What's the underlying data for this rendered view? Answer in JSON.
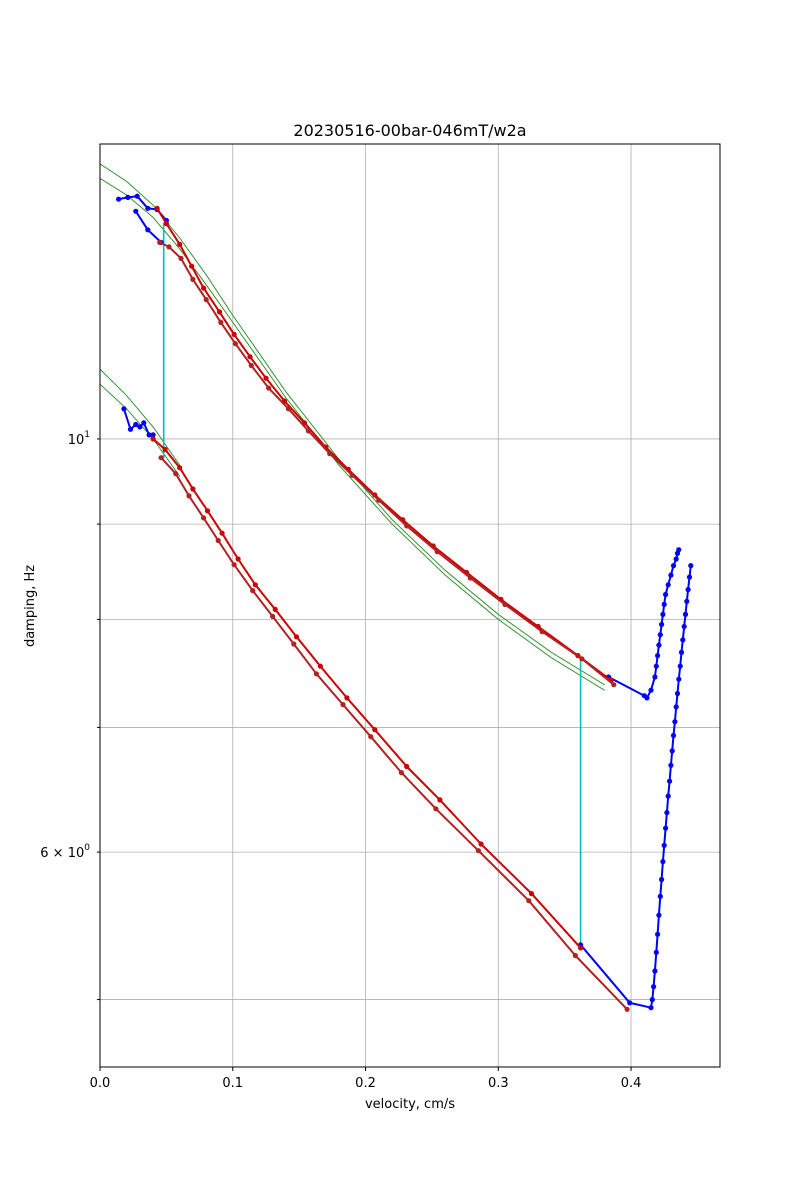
{
  "chart_data": {
    "type": "line",
    "title": "20230516-00bar-046mT/w2a",
    "xlabel": "velocity, cm/s",
    "ylabel": "damping, Hz",
    "xlim": [
      0.0,
      0.467
    ],
    "ylim": [
      4.6,
      14.4
    ],
    "yscale": "log",
    "grid": true,
    "x_ticks": [
      {
        "value": 0.0,
        "label": "0.0"
      },
      {
        "value": 0.1,
        "label": "0.1"
      },
      {
        "value": 0.2,
        "label": "0.2"
      },
      {
        "value": 0.3,
        "label": "0.3"
      },
      {
        "value": 0.4,
        "label": "0.4"
      }
    ],
    "y_major_ticks": [
      {
        "value": 10,
        "label_base": "10",
        "label_exp": "1"
      }
    ],
    "y_labeled_minor_ticks": [
      {
        "value": 6,
        "label_base": "6 × 10",
        "label_exp": "0"
      }
    ],
    "y_minor_grid": [
      5,
      7,
      8,
      9
    ],
    "colors": {
      "raw": "#0000ff",
      "processed_1": "#cc0000",
      "processed_2": "#b22222",
      "fit": "#228b22",
      "marker_line": "#00bfbf"
    },
    "series": [
      {
        "style": "raw",
        "color": "#0000ff",
        "markers": true,
        "x": [
          0.014,
          0.021,
          0.028,
          0.036,
          0.043,
          0.05
        ],
        "y": [
          13.45,
          13.48,
          13.5,
          13.3,
          13.28,
          13.1
        ]
      },
      {
        "style": "raw",
        "color": "#0000ff",
        "markers": true,
        "x": [
          0.027,
          0.036,
          0.046
        ],
        "y": [
          13.25,
          12.95,
          12.75
        ]
      },
      {
        "style": "processed",
        "color": "#cc0000",
        "markers": true,
        "x": [
          0.043,
          0.05,
          0.06,
          0.069,
          0.078,
          0.09,
          0.101,
          0.113,
          0.125,
          0.139,
          0.154,
          0.17,
          0.187,
          0.207,
          0.228,
          0.251,
          0.276,
          0.302,
          0.33,
          0.36,
          0.385
        ],
        "y": [
          13.3,
          13.05,
          12.72,
          12.38,
          12.05,
          11.7,
          11.38,
          11.07,
          10.78,
          10.48,
          10.2,
          9.9,
          9.63,
          9.33,
          9.05,
          8.76,
          8.48,
          8.2,
          7.93,
          7.65,
          7.42
        ]
      },
      {
        "style": "processed",
        "color": "#b22222",
        "markers": true,
        "x": [
          0.045,
          0.052,
          0.061,
          0.07,
          0.08,
          0.091,
          0.102,
          0.114,
          0.127,
          0.142,
          0.157,
          0.173,
          0.19,
          0.21,
          0.231,
          0.254,
          0.279,
          0.305,
          0.333,
          0.363,
          0.387
        ],
        "y": [
          12.75,
          12.68,
          12.5,
          12.18,
          11.88,
          11.55,
          11.25,
          10.95,
          10.65,
          10.38,
          10.1,
          9.82,
          9.56,
          9.27,
          8.98,
          8.7,
          8.42,
          8.15,
          7.88,
          7.62,
          7.38
        ]
      },
      {
        "style": "raw",
        "color": "#0000ff",
        "markers": true,
        "x": [
          0.383,
          0.41,
          0.412,
          0.415,
          0.418,
          0.419,
          0.42,
          0.421,
          0.422,
          0.423,
          0.424,
          0.425,
          0.426,
          0.428,
          0.43,
          0.432,
          0.434,
          0.435,
          0.436
        ],
        "y": [
          7.45,
          7.28,
          7.26,
          7.33,
          7.45,
          7.55,
          7.65,
          7.75,
          7.85,
          7.95,
          8.05,
          8.15,
          8.25,
          8.35,
          8.45,
          8.55,
          8.62,
          8.68,
          8.72
        ]
      },
      {
        "style": "raw",
        "color": "#0000ff",
        "markers": true,
        "x": [
          0.018,
          0.023,
          0.027,
          0.03,
          0.033,
          0.037,
          0.04
        ],
        "y": [
          10.38,
          10.12,
          10.18,
          10.15,
          10.2,
          10.05,
          10.05
        ]
      },
      {
        "style": "processed",
        "color": "#cc0000",
        "markers": true,
        "x": [
          0.04,
          0.049,
          0.06,
          0.07,
          0.081,
          0.092,
          0.104,
          0.117,
          0.132,
          0.148,
          0.166,
          0.186,
          0.207,
          0.231,
          0.256,
          0.287,
          0.325,
          0.362
        ],
        "y": [
          10.0,
          9.87,
          9.65,
          9.4,
          9.15,
          8.9,
          8.62,
          8.35,
          8.1,
          7.83,
          7.55,
          7.26,
          6.98,
          6.67,
          6.4,
          6.06,
          5.7,
          5.33
        ]
      },
      {
        "style": "processed",
        "color": "#b22222",
        "markers": true,
        "x": [
          0.046,
          0.057,
          0.067,
          0.078,
          0.089,
          0.101,
          0.115,
          0.13,
          0.146,
          0.163,
          0.183,
          0.204,
          0.227,
          0.253,
          0.285,
          0.323,
          0.358,
          0.397
        ],
        "y": [
          9.77,
          9.58,
          9.32,
          9.07,
          8.82,
          8.56,
          8.29,
          8.03,
          7.76,
          7.48,
          7.2,
          6.92,
          6.62,
          6.33,
          6.01,
          5.65,
          5.28,
          4.94
        ]
      },
      {
        "style": "raw",
        "color": "#0000ff",
        "markers": true,
        "x": [
          0.362,
          0.399,
          0.415,
          0.416,
          0.417,
          0.418,
          0.419,
          0.42,
          0.421,
          0.422,
          0.423,
          0.424,
          0.425,
          0.426,
          0.427,
          0.428,
          0.429,
          0.43,
          0.431,
          0.432,
          0.433,
          0.434,
          0.435,
          0.436,
          0.437,
          0.438,
          0.439,
          0.44,
          0.441,
          0.442,
          0.443,
          0.444,
          0.445
        ],
        "y": [
          5.35,
          4.98,
          4.95,
          5.0,
          5.08,
          5.18,
          5.3,
          5.42,
          5.55,
          5.68,
          5.8,
          5.93,
          6.05,
          6.18,
          6.3,
          6.43,
          6.55,
          6.68,
          6.8,
          6.93,
          7.05,
          7.18,
          7.3,
          7.43,
          7.55,
          7.68,
          7.8,
          7.93,
          8.05,
          8.18,
          8.3,
          8.43,
          8.55
        ]
      },
      {
        "style": "vertical",
        "color": "#00bfbf",
        "markers": false,
        "x": [
          0.048,
          0.048
        ],
        "y": [
          9.77,
          13.05
        ]
      },
      {
        "style": "vertical",
        "color": "#00bfbf",
        "markers": false,
        "x": [
          0.362,
          0.362
        ],
        "y": [
          5.35,
          7.62
        ]
      },
      {
        "style": "fit",
        "color": "#228b22",
        "markers": false,
        "x": [
          0.0,
          0.02,
          0.04,
          0.06,
          0.08,
          0.1,
          0.14,
          0.18,
          0.22,
          0.26,
          0.3,
          0.34,
          0.38
        ],
        "y": [
          14.05,
          13.75,
          13.35,
          12.82,
          12.25,
          11.65,
          10.6,
          9.75,
          9.05,
          8.5,
          8.05,
          7.68,
          7.38
        ]
      },
      {
        "style": "fit",
        "color": "#228b22",
        "markers": false,
        "x": [
          0.0,
          0.02,
          0.04,
          0.06,
          0.08,
          0.1,
          0.14,
          0.18,
          0.22,
          0.26,
          0.3,
          0.34,
          0.38
        ],
        "y": [
          13.8,
          13.52,
          13.15,
          12.65,
          12.1,
          11.55,
          10.52,
          9.68,
          9.0,
          8.45,
          8.0,
          7.63,
          7.33
        ]
      },
      {
        "style": "fit",
        "color": "#228b22",
        "markers": false,
        "x": [
          0.0,
          0.02,
          0.04,
          0.06
        ],
        "y": [
          10.9,
          10.55,
          10.15,
          9.68
        ]
      },
      {
        "style": "fit",
        "color": "#228b22",
        "markers": false,
        "x": [
          0.0,
          0.02,
          0.04,
          0.06
        ],
        "y": [
          10.7,
          10.38,
          10.0,
          9.55
        ]
      }
    ]
  }
}
